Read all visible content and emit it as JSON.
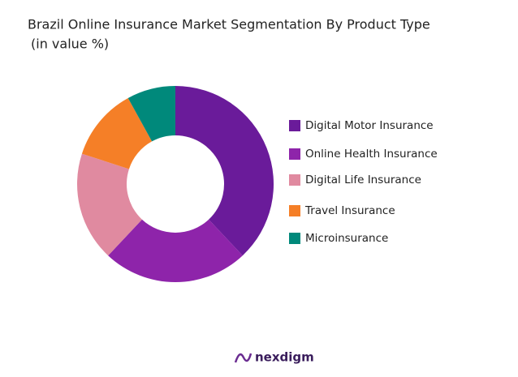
{
  "chart_data": {
    "type": "donut",
    "title": "Brazil Online Insurance Market Segmentation By Product Type",
    "subtitle": "(in value %)",
    "categories": [
      "Digital Motor Insurance",
      "Online Health Insurance",
      "Digital Life Insurance",
      "Travel Insurance",
      "Microinsurance"
    ],
    "values": [
      38,
      24,
      18,
      12,
      8
    ],
    "colors": [
      "#6a1b9a",
      "#8e24aa",
      "#e08aa0",
      "#f57f27",
      "#00897b"
    ],
    "legend": "right"
  },
  "logo_text": "nexdigm"
}
